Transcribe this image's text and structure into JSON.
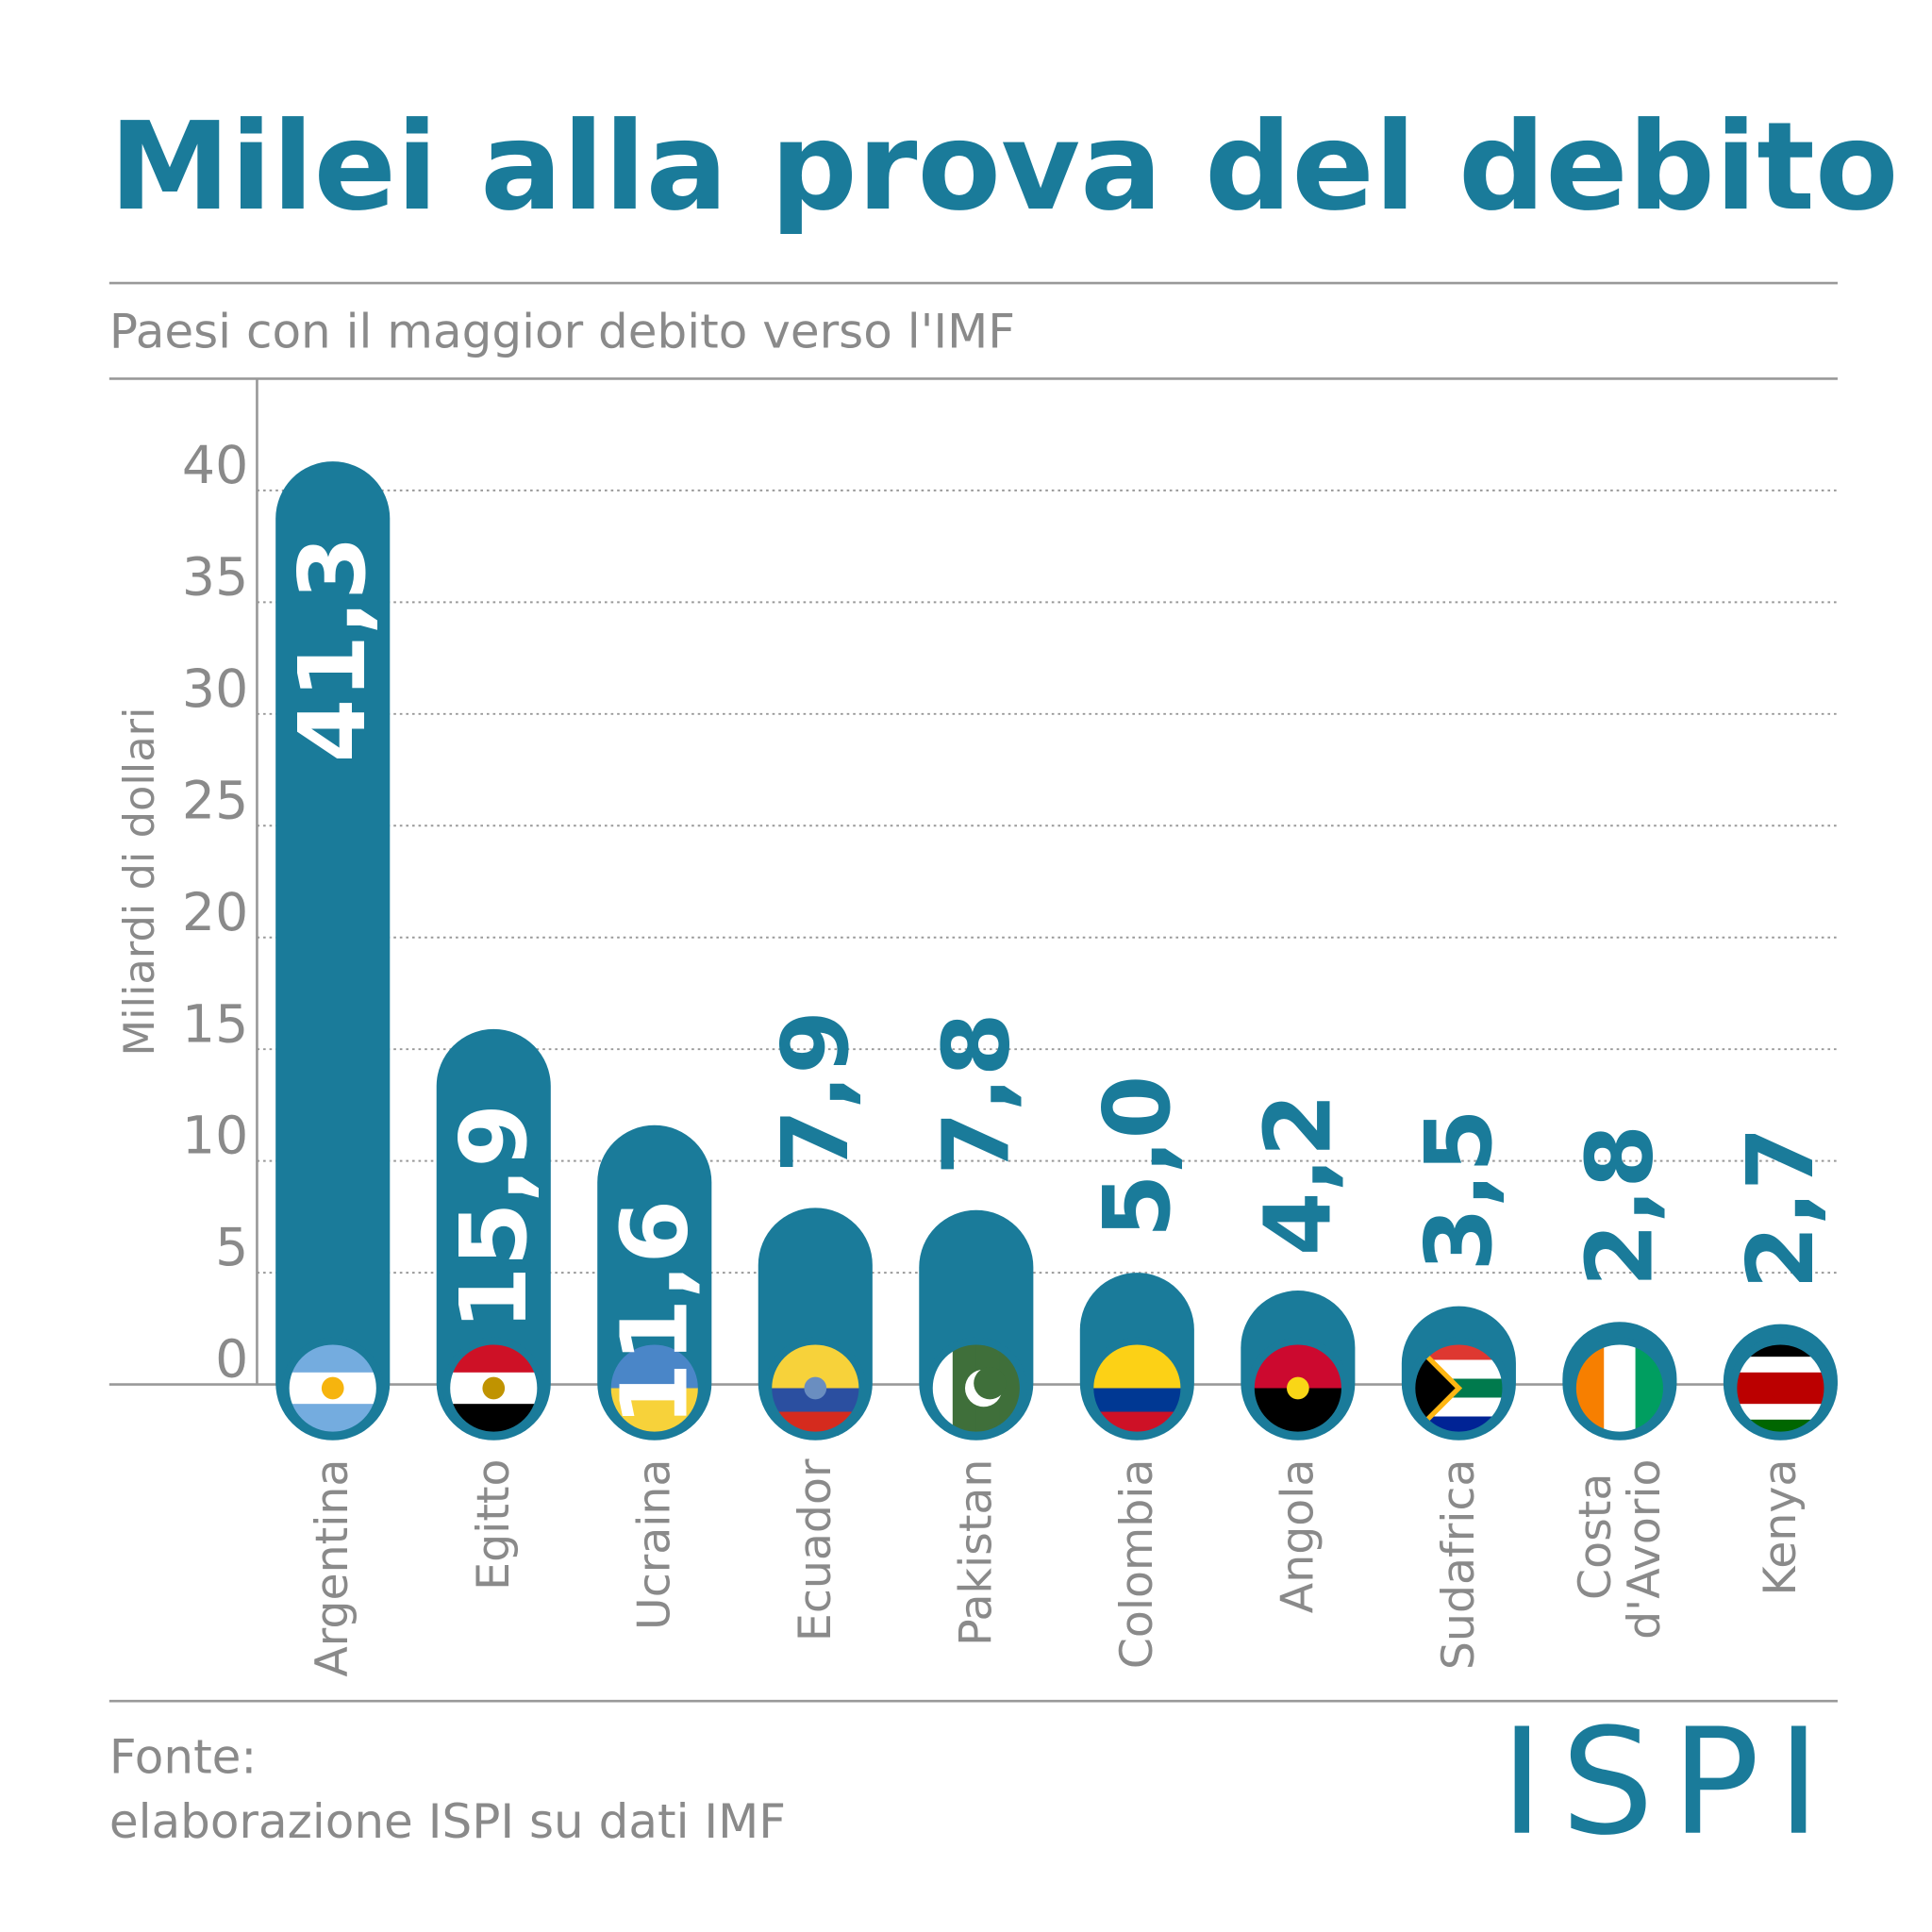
{
  "chart_data": {
    "type": "bar",
    "title": "Milei alla prova del debito",
    "subtitle": "Paesi con il maggior debito verso l'IMF",
    "y_label": "Miliardi di dollari",
    "categories": [
      "Argentina",
      "Egitto",
      "Ucraina",
      "Ecuador",
      "Pakistan",
      "Colombia",
      "Angola",
      "Sudafrica",
      "Costa d'Avorio",
      "Kenya"
    ],
    "values": [
      41.3,
      15.9,
      11.6,
      7.9,
      7.8,
      5.0,
      4.2,
      3.5,
      2.8,
      2.7
    ],
    "value_labels": [
      "41,3",
      "15,9",
      "11,6",
      "7,9",
      "7,8",
      "5,0",
      "4,2",
      "3,5",
      "2,8",
      "2,7"
    ],
    "color": "#1a7b9a",
    "ylim": [
      0,
      45
    ],
    "yticks": [
      0,
      5,
      10,
      15,
      20,
      25,
      30,
      35,
      40
    ],
    "grid": true
  },
  "footer": {
    "source_label": "Fonte:",
    "source": "elaborazione ISPI su dati IMF",
    "logo": "ISPI"
  }
}
